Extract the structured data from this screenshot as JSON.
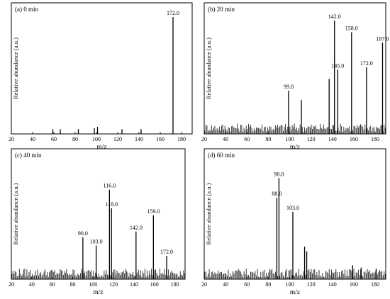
{
  "chart_data": [
    {
      "type": "bar",
      "title": "(a) 0 min",
      "xlabel": "m/z",
      "ylabel": "Relative abundance (a.u.)",
      "xlim": [
        20,
        190
      ],
      "ylim": [
        0,
        100
      ],
      "xticks": [
        20,
        40,
        60,
        80,
        100,
        120,
        140,
        160,
        180
      ],
      "peaks": [
        {
          "mz": 59,
          "value": 4
        },
        {
          "mz": 66,
          "value": 4
        },
        {
          "mz": 83,
          "value": 4
        },
        {
          "mz": 98,
          "value": 5
        },
        {
          "mz": 101,
          "value": 6
        },
        {
          "mz": 124,
          "value": 4
        },
        {
          "mz": 142,
          "value": 4
        },
        {
          "mz": 172,
          "value": 100,
          "label": "172.0"
        }
      ],
      "noise": false
    },
    {
      "type": "bar",
      "title": "(b) 20 min",
      "xlabel": "m/z",
      "ylabel": "Relative abundance (a.u.)",
      "xlim": [
        20,
        190
      ],
      "ylim": [
        0,
        100
      ],
      "xticks": [
        20,
        40,
        60,
        80,
        100,
        120,
        140,
        160,
        180
      ],
      "peaks": [
        {
          "mz": 99,
          "value": 37,
          "label": "99.0"
        },
        {
          "mz": 111,
          "value": 29
        },
        {
          "mz": 137,
          "value": 47
        },
        {
          "mz": 142,
          "value": 97,
          "label": "142.0"
        },
        {
          "mz": 145,
          "value": 55,
          "label": "145.0"
        },
        {
          "mz": 158,
          "value": 87,
          "label": "158.0"
        },
        {
          "mz": 172,
          "value": 57,
          "label": "172.0"
        },
        {
          "mz": 187,
          "value": 78,
          "label": "187.0"
        }
      ],
      "noise": true
    },
    {
      "type": "bar",
      "title": "(c) 40 min",
      "xlabel": "m/z",
      "ylabel": "Relative abundance (a.u.)",
      "xlim": [
        20,
        190
      ],
      "ylim": [
        0,
        100
      ],
      "xticks": [
        20,
        40,
        60,
        80,
        100,
        120,
        140,
        160,
        180
      ],
      "peaks": [
        {
          "mz": 90,
          "value": 36,
          "label": "90.0"
        },
        {
          "mz": 103,
          "value": 29,
          "label": "103.0"
        },
        {
          "mz": 116,
          "value": 77,
          "label": "116.0"
        },
        {
          "mz": 118,
          "value": 61,
          "label": "118.0"
        },
        {
          "mz": 142,
          "value": 41,
          "label": "142.0"
        },
        {
          "mz": 159,
          "value": 55,
          "label": "159.0"
        },
        {
          "mz": 172,
          "value": 20,
          "label": "172.0"
        }
      ],
      "noise": true
    },
    {
      "type": "bar",
      "title": "(d) 60 min",
      "xlabel": "m/z",
      "ylabel": "Relative abundance (a.u.)",
      "xlim": [
        20,
        190
      ],
      "ylim": [
        0,
        100
      ],
      "xticks": [
        20,
        40,
        60,
        80,
        100,
        120,
        140,
        160,
        180
      ],
      "peaks": [
        {
          "mz": 88,
          "value": 70,
          "label": "88.0"
        },
        {
          "mz": 90,
          "value": 87,
          "label": "90.0"
        },
        {
          "mz": 103,
          "value": 58,
          "label": "103.0"
        },
        {
          "mz": 114,
          "value": 28
        },
        {
          "mz": 116,
          "value": 24
        },
        {
          "mz": 159,
          "value": 12
        },
        {
          "mz": 167,
          "value": 10
        },
        {
          "mz": 181,
          "value": 9
        }
      ],
      "noise": true
    }
  ]
}
